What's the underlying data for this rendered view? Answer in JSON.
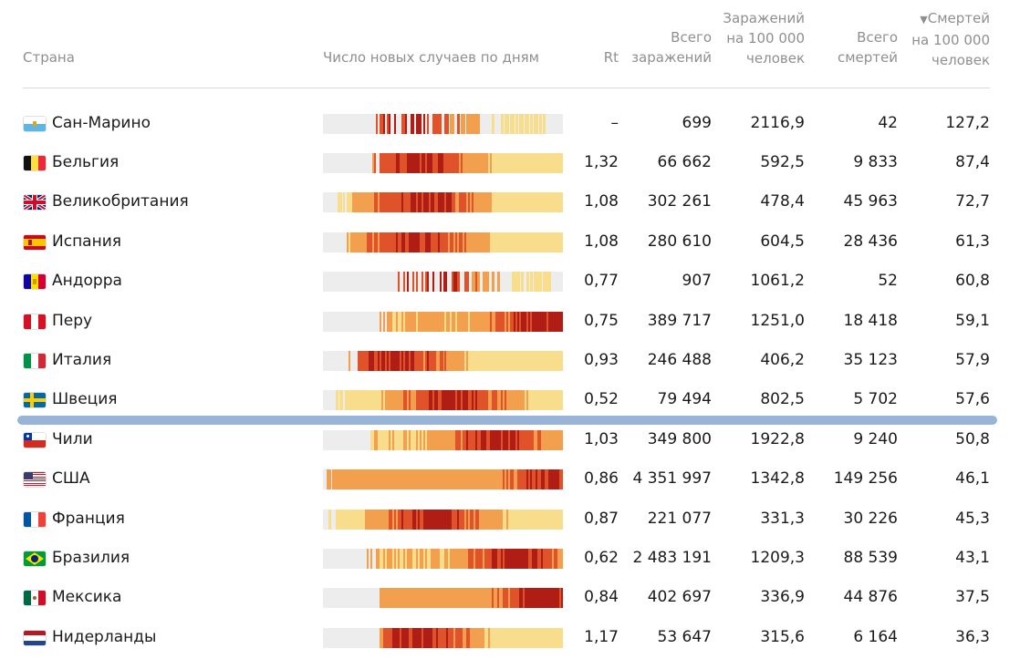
{
  "header": {
    "country": "Страна",
    "daily_cases": "Число новых случаев по дням",
    "rt": "Rt",
    "total_cases_l1": "Всего",
    "total_cases_l2": "заражений",
    "cases_per100k_l1": "Заражений",
    "cases_per100k_l2": "на 100 000",
    "cases_per100k_l3": "человек",
    "total_deaths_l1": "Всего",
    "total_deaths_l2": "смертей",
    "deaths_per100k_l1": "Смертей",
    "deaths_per100k_l2": "на 100 000",
    "deaths_per100k_l3": "человек",
    "sort_icon": "triangle-down-icon"
  },
  "colors": {
    "low": "#f8dd8c",
    "mid": "#f3a04e",
    "high": "#e0532a",
    "max": "#b01d14",
    "empty": "#ededed",
    "divider": "#98b5d8",
    "header_text": "#8f8f8f"
  },
  "rows": [
    {
      "country": "Сан-Марино",
      "flag": "san-marino-flag",
      "rt": "–",
      "total_cases": "699",
      "cases_per100k": "2116,9",
      "total_deaths": "42",
      "deaths_per100k": "127,2"
    },
    {
      "country": "Бельгия",
      "flag": "belgium-flag",
      "rt": "1,32",
      "total_cases": "66 662",
      "cases_per100k": "592,5",
      "total_deaths": "9 833",
      "deaths_per100k": "87,4"
    },
    {
      "country": "Великобритания",
      "flag": "uk-flag",
      "rt": "1,08",
      "total_cases": "302 261",
      "cases_per100k": "478,4",
      "total_deaths": "45 963",
      "deaths_per100k": "72,7"
    },
    {
      "country": "Испания",
      "flag": "spain-flag",
      "rt": "1,08",
      "total_cases": "280 610",
      "cases_per100k": "604,5",
      "total_deaths": "28 436",
      "deaths_per100k": "61,3"
    },
    {
      "country": "Андорра",
      "flag": "andorra-flag",
      "rt": "0,77",
      "total_cases": "907",
      "cases_per100k": "1061,2",
      "total_deaths": "52",
      "deaths_per100k": "60,8"
    },
    {
      "country": "Перу",
      "flag": "peru-flag",
      "rt": "0,75",
      "total_cases": "389 717",
      "cases_per100k": "1251,0",
      "total_deaths": "18 418",
      "deaths_per100k": "59,1"
    },
    {
      "country": "Италия",
      "flag": "italy-flag",
      "rt": "0,93",
      "total_cases": "246 488",
      "cases_per100k": "406,2",
      "total_deaths": "35 123",
      "deaths_per100k": "57,9"
    },
    {
      "country": "Швеция",
      "flag": "sweden-flag",
      "rt": "0,52",
      "total_cases": "79 494",
      "cases_per100k": "802,5",
      "total_deaths": "5 702",
      "deaths_per100k": "57,6"
    },
    {
      "country": "Чили",
      "flag": "chile-flag",
      "rt": "1,03",
      "total_cases": "349 800",
      "cases_per100k": "1922,8",
      "total_deaths": "9 240",
      "deaths_per100k": "50,8"
    },
    {
      "country": "США",
      "flag": "usa-flag",
      "rt": "0,86",
      "total_cases": "4 351 997",
      "cases_per100k": "1342,8",
      "total_deaths": "149 256",
      "deaths_per100k": "46,1"
    },
    {
      "country": "Франция",
      "flag": "france-flag",
      "rt": "0,87",
      "total_cases": "221 077",
      "cases_per100k": "331,3",
      "total_deaths": "30 226",
      "deaths_per100k": "45,3"
    },
    {
      "country": "Бразилия",
      "flag": "brazil-flag",
      "rt": "0,62",
      "total_cases": "2 483 191",
      "cases_per100k": "1209,3",
      "total_deaths": "88 539",
      "deaths_per100k": "43,1"
    },
    {
      "country": "Мексика",
      "flag": "mexico-flag",
      "rt": "0,84",
      "total_cases": "402 697",
      "cases_per100k": "336,9",
      "total_deaths": "44 876",
      "deaths_per100k": "37,5"
    },
    {
      "country": "Нидерланды",
      "flag": "netherlands-flag",
      "rt": "1,17",
      "total_cases": "53 647",
      "cases_per100k": "315,6",
      "total_deaths": "6 164",
      "deaths_per100k": "36,3"
    }
  ],
  "heatmaps": [
    {
      "start": 0.19,
      "peak": 0.35,
      "end": 0.92,
      "sparse": true,
      "tail": 0.35
    },
    {
      "start": 0.2,
      "peak": 0.4,
      "end": 1.0,
      "sparse": false,
      "tail": 0.2
    },
    {
      "start": 0.06,
      "peak": 0.42,
      "end": 1.0,
      "sparse": false,
      "tail": 0.25
    },
    {
      "start": 0.08,
      "peak": 0.38,
      "end": 1.0,
      "sparse": false,
      "tail": 0.2
    },
    {
      "start": 0.28,
      "peak": 0.45,
      "end": 0.95,
      "sparse": true,
      "tail": 0.3
    },
    {
      "start": 0.23,
      "peak": 0.9,
      "end": 1.0,
      "sparse": false,
      "tail": 0.55
    },
    {
      "start": 0.1,
      "peak": 0.3,
      "end": 1.0,
      "sparse": false,
      "tail": 0.15
    },
    {
      "start": 0.05,
      "peak": 0.55,
      "end": 1.0,
      "sparse": false,
      "tail": 0.4
    },
    {
      "start": 0.17,
      "peak": 0.72,
      "end": 1.0,
      "sparse": false,
      "tail": 0.45
    },
    {
      "start": 0.0,
      "peak": 0.95,
      "end": 1.0,
      "sparse": false,
      "tail": 0.7
    },
    {
      "start": 0.02,
      "peak": 0.45,
      "end": 1.0,
      "sparse": false,
      "tail": 0.2
    },
    {
      "start": 0.18,
      "peak": 0.8,
      "end": 1.0,
      "sparse": false,
      "tail": 0.5
    },
    {
      "start": 0.2,
      "peak": 0.92,
      "end": 1.0,
      "sparse": false,
      "tail": 0.75
    },
    {
      "start": 0.22,
      "peak": 0.4,
      "end": 1.0,
      "sparse": false,
      "tail": 0.25
    }
  ]
}
